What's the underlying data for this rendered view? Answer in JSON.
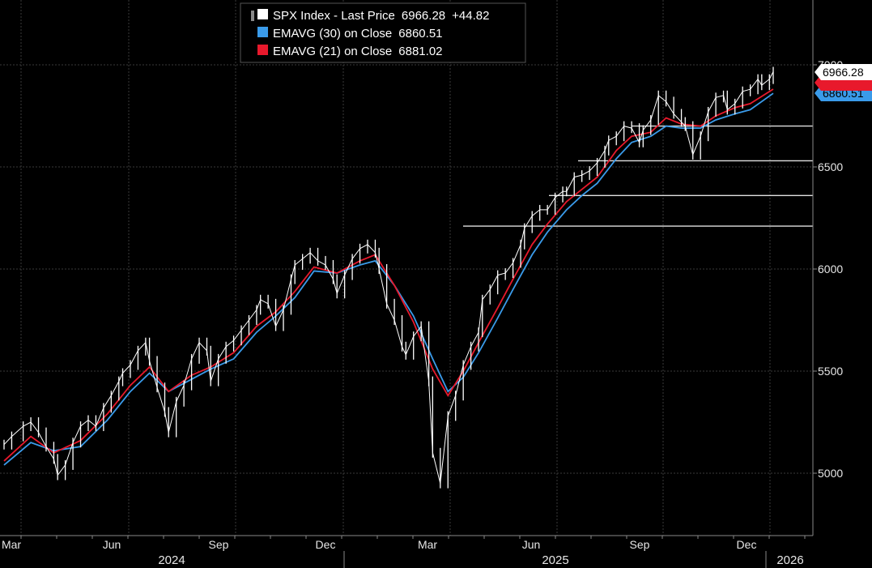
{
  "chart_data": {
    "type": "line",
    "ylim": [
      4700,
      7200
    ],
    "yticks": [
      5000,
      5500,
      6000,
      6500,
      7000
    ],
    "y_tick_labels": [
      "5000",
      "5500",
      "6000",
      "6500",
      "7000"
    ],
    "x_months": [
      "Mar",
      "Jun",
      "Sep",
      "Dec",
      "Mar",
      "Jun",
      "Sep",
      "Dec"
    ],
    "x_years": [
      "2024",
      "2025",
      "2026"
    ],
    "grid": true,
    "legend": [
      {
        "label": "SPX Index - Last Price",
        "value": "6966.28",
        "change": "+44.82",
        "color": "#ffffff"
      },
      {
        "label": "EMAVG (30)  on Close",
        "value": "6860.51",
        "color": "#3a9bea"
      },
      {
        "label": "EMAVG (21)  on Close",
        "value": "6881.02",
        "color": "#e8192c"
      }
    ],
    "last_value_tags": [
      {
        "value": "6966.28",
        "y": 6966.28,
        "bg": "#ffffff",
        "fg": "#000000"
      },
      {
        "value": "6860.51",
        "y": 6860.51,
        "bg": "#3a9bea",
        "fg": "#000000"
      },
      {
        "value": "6881.02",
        "y": 6881.02,
        "bg": "#e8192c",
        "fg": "#000000"
      }
    ],
    "support_levels": [
      6700,
      6530,
      6360,
      6210
    ],
    "price": [
      [
        0,
        5140
      ],
      [
        2,
        5180
      ],
      [
        5,
        5230
      ],
      [
        7,
        5250
      ],
      [
        9,
        5200
      ],
      [
        11,
        5130
      ],
      [
        13,
        5070
      ],
      [
        14,
        4990
      ],
      [
        16,
        5040
      ],
      [
        18,
        5150
      ],
      [
        20,
        5230
      ],
      [
        22,
        5260
      ],
      [
        24,
        5230
      ],
      [
        26,
        5320
      ],
      [
        28,
        5380
      ],
      [
        30,
        5450
      ],
      [
        31,
        5490
      ],
      [
        33,
        5530
      ],
      [
        35,
        5600
      ],
      [
        37,
        5640
      ],
      [
        38,
        5550
      ],
      [
        40,
        5420
      ],
      [
        42,
        5300
      ],
      [
        43,
        5200
      ],
      [
        45,
        5350
      ],
      [
        47,
        5430
      ],
      [
        49,
        5560
      ],
      [
        51,
        5640
      ],
      [
        53,
        5600
      ],
      [
        54,
        5450
      ],
      [
        56,
        5560
      ],
      [
        58,
        5620
      ],
      [
        60,
        5650
      ],
      [
        62,
        5700
      ],
      [
        64,
        5750
      ],
      [
        66,
        5800
      ],
      [
        67,
        5850
      ],
      [
        69,
        5830
      ],
      [
        71,
        5720
      ],
      [
        73,
        5800
      ],
      [
        75,
        5950
      ],
      [
        76,
        6020
      ],
      [
        78,
        6050
      ],
      [
        80,
        6080
      ],
      [
        82,
        6040
      ],
      [
        84,
        6020
      ],
      [
        86,
        5950
      ],
      [
        87,
        5880
      ],
      [
        89,
        5970
      ],
      [
        91,
        6050
      ],
      [
        93,
        6100
      ],
      [
        95,
        6120
      ],
      [
        97,
        6080
      ],
      [
        98,
        6000
      ],
      [
        100,
        5830
      ],
      [
        102,
        5750
      ],
      [
        104,
        5620
      ],
      [
        105,
        5580
      ],
      [
        107,
        5670
      ],
      [
        109,
        5720
      ],
      [
        111,
        5450
      ],
      [
        112,
        5100
      ],
      [
        114,
        4950
      ],
      [
        116,
        5280
      ],
      [
        118,
        5380
      ],
      [
        120,
        5530
      ],
      [
        122,
        5620
      ],
      [
        124,
        5690
      ],
      [
        125,
        5850
      ],
      [
        127,
        5900
      ],
      [
        129,
        5970
      ],
      [
        131,
        5980
      ],
      [
        133,
        6030
      ],
      [
        135,
        6120
      ],
      [
        136,
        6200
      ],
      [
        138,
        6260
      ],
      [
        140,
        6290
      ],
      [
        142,
        6290
      ],
      [
        144,
        6350
      ],
      [
        146,
        6380
      ],
      [
        147,
        6380
      ],
      [
        149,
        6450
      ],
      [
        151,
        6460
      ],
      [
        153,
        6480
      ],
      [
        155,
        6520
      ],
      [
        157,
        6580
      ],
      [
        158,
        6630
      ],
      [
        160,
        6650
      ],
      [
        162,
        6700
      ],
      [
        164,
        6690
      ],
      [
        166,
        6620
      ],
      [
        167,
        6680
      ],
      [
        169,
        6730
      ],
      [
        171,
        6850
      ],
      [
        173,
        6820
      ],
      [
        175,
        6760
      ],
      [
        177,
        6720
      ],
      [
        178,
        6700
      ],
      [
        180,
        6560
      ],
      [
        182,
        6650
      ],
      [
        184,
        6770
      ],
      [
        186,
        6840
      ],
      [
        188,
        6850
      ],
      [
        189,
        6780
      ],
      [
        191,
        6810
      ],
      [
        193,
        6870
      ],
      [
        195,
        6880
      ],
      [
        197,
        6930
      ],
      [
        198,
        6900
      ],
      [
        200,
        6930
      ],
      [
        201,
        6966.28
      ]
    ],
    "ema30": [
      [
        0,
        5040
      ],
      [
        7,
        5150
      ],
      [
        13,
        5110
      ],
      [
        20,
        5130
      ],
      [
        27,
        5260
      ],
      [
        33,
        5400
      ],
      [
        38,
        5490
      ],
      [
        43,
        5400
      ],
      [
        49,
        5460
      ],
      [
        54,
        5510
      ],
      [
        60,
        5560
      ],
      [
        66,
        5690
      ],
      [
        71,
        5770
      ],
      [
        76,
        5860
      ],
      [
        81,
        5990
      ],
      [
        87,
        5980
      ],
      [
        93,
        6020
      ],
      [
        97,
        6040
      ],
      [
        102,
        5920
      ],
      [
        107,
        5770
      ],
      [
        112,
        5560
      ],
      [
        116,
        5400
      ],
      [
        120,
        5470
      ],
      [
        124,
        5590
      ],
      [
        129,
        5760
      ],
      [
        133,
        5900
      ],
      [
        138,
        6070
      ],
      [
        142,
        6180
      ],
      [
        147,
        6290
      ],
      [
        151,
        6360
      ],
      [
        155,
        6420
      ],
      [
        160,
        6540
      ],
      [
        164,
        6620
      ],
      [
        169,
        6650
      ],
      [
        173,
        6700
      ],
      [
        177,
        6690
      ],
      [
        182,
        6690
      ],
      [
        186,
        6730
      ],
      [
        191,
        6760
      ],
      [
        195,
        6780
      ],
      [
        201,
        6860.51
      ]
    ],
    "ema21": [
      [
        0,
        5060
      ],
      [
        7,
        5180
      ],
      [
        13,
        5100
      ],
      [
        20,
        5160
      ],
      [
        27,
        5290
      ],
      [
        33,
        5430
      ],
      [
        38,
        5520
      ],
      [
        43,
        5400
      ],
      [
        49,
        5480
      ],
      [
        54,
        5520
      ],
      [
        60,
        5590
      ],
      [
        66,
        5720
      ],
      [
        71,
        5790
      ],
      [
        76,
        5890
      ],
      [
        81,
        6010
      ],
      [
        87,
        5980
      ],
      [
        93,
        6040
      ],
      [
        97,
        6070
      ],
      [
        102,
        5920
      ],
      [
        107,
        5740
      ],
      [
        112,
        5510
      ],
      [
        116,
        5380
      ],
      [
        120,
        5500
      ],
      [
        124,
        5640
      ],
      [
        129,
        5810
      ],
      [
        133,
        5950
      ],
      [
        138,
        6120
      ],
      [
        142,
        6220
      ],
      [
        147,
        6330
      ],
      [
        151,
        6390
      ],
      [
        155,
        6450
      ],
      [
        160,
        6580
      ],
      [
        164,
        6650
      ],
      [
        169,
        6670
      ],
      [
        173,
        6740
      ],
      [
        177,
        6710
      ],
      [
        182,
        6700
      ],
      [
        186,
        6750
      ],
      [
        191,
        6790
      ],
      [
        195,
        6810
      ],
      [
        201,
        6881.02
      ]
    ]
  }
}
